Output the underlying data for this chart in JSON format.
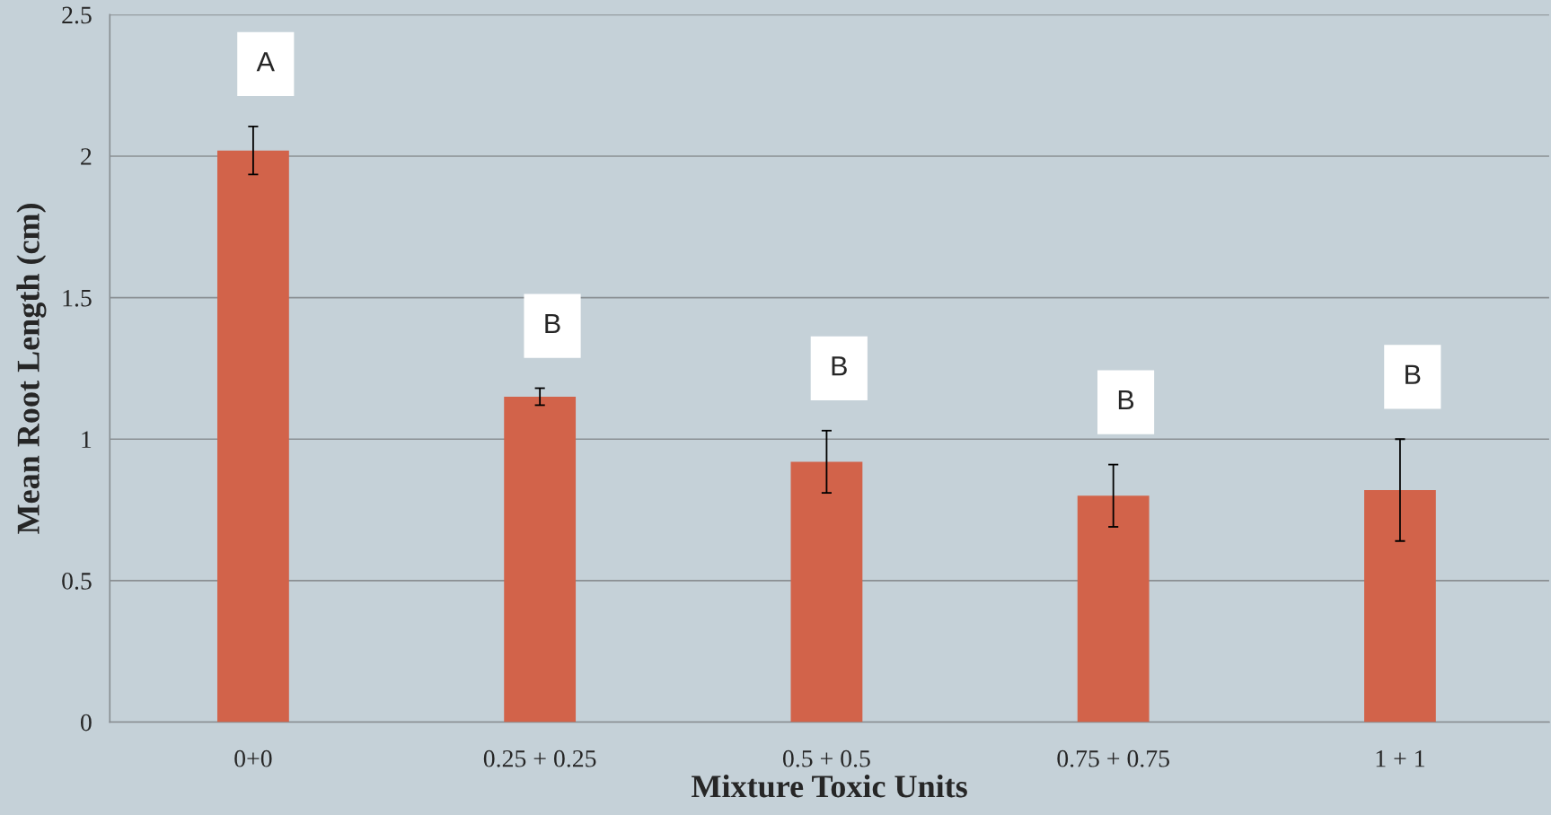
{
  "chart_data": {
    "type": "bar",
    "xlabel": "Mixture Toxic Units",
    "ylabel": "Mean Root Length (cm)",
    "categories": [
      "0+0",
      "0.25 + 0.25",
      "0.5 + 0.5",
      "0.75 + 0.75",
      "1 + 1"
    ],
    "values": [
      2.02,
      1.15,
      0.92,
      0.8,
      0.82
    ],
    "errors": [
      0.085,
      0.03,
      0.11,
      0.11,
      0.18
    ],
    "color": "#d2634a",
    "ylim": [
      0,
      2.5
    ],
    "yticks": [
      0,
      0.5,
      1,
      1.5,
      2,
      2.5
    ],
    "grid": "y",
    "annotations": [
      "A",
      "B",
      "B",
      "B",
      "B"
    ]
  }
}
